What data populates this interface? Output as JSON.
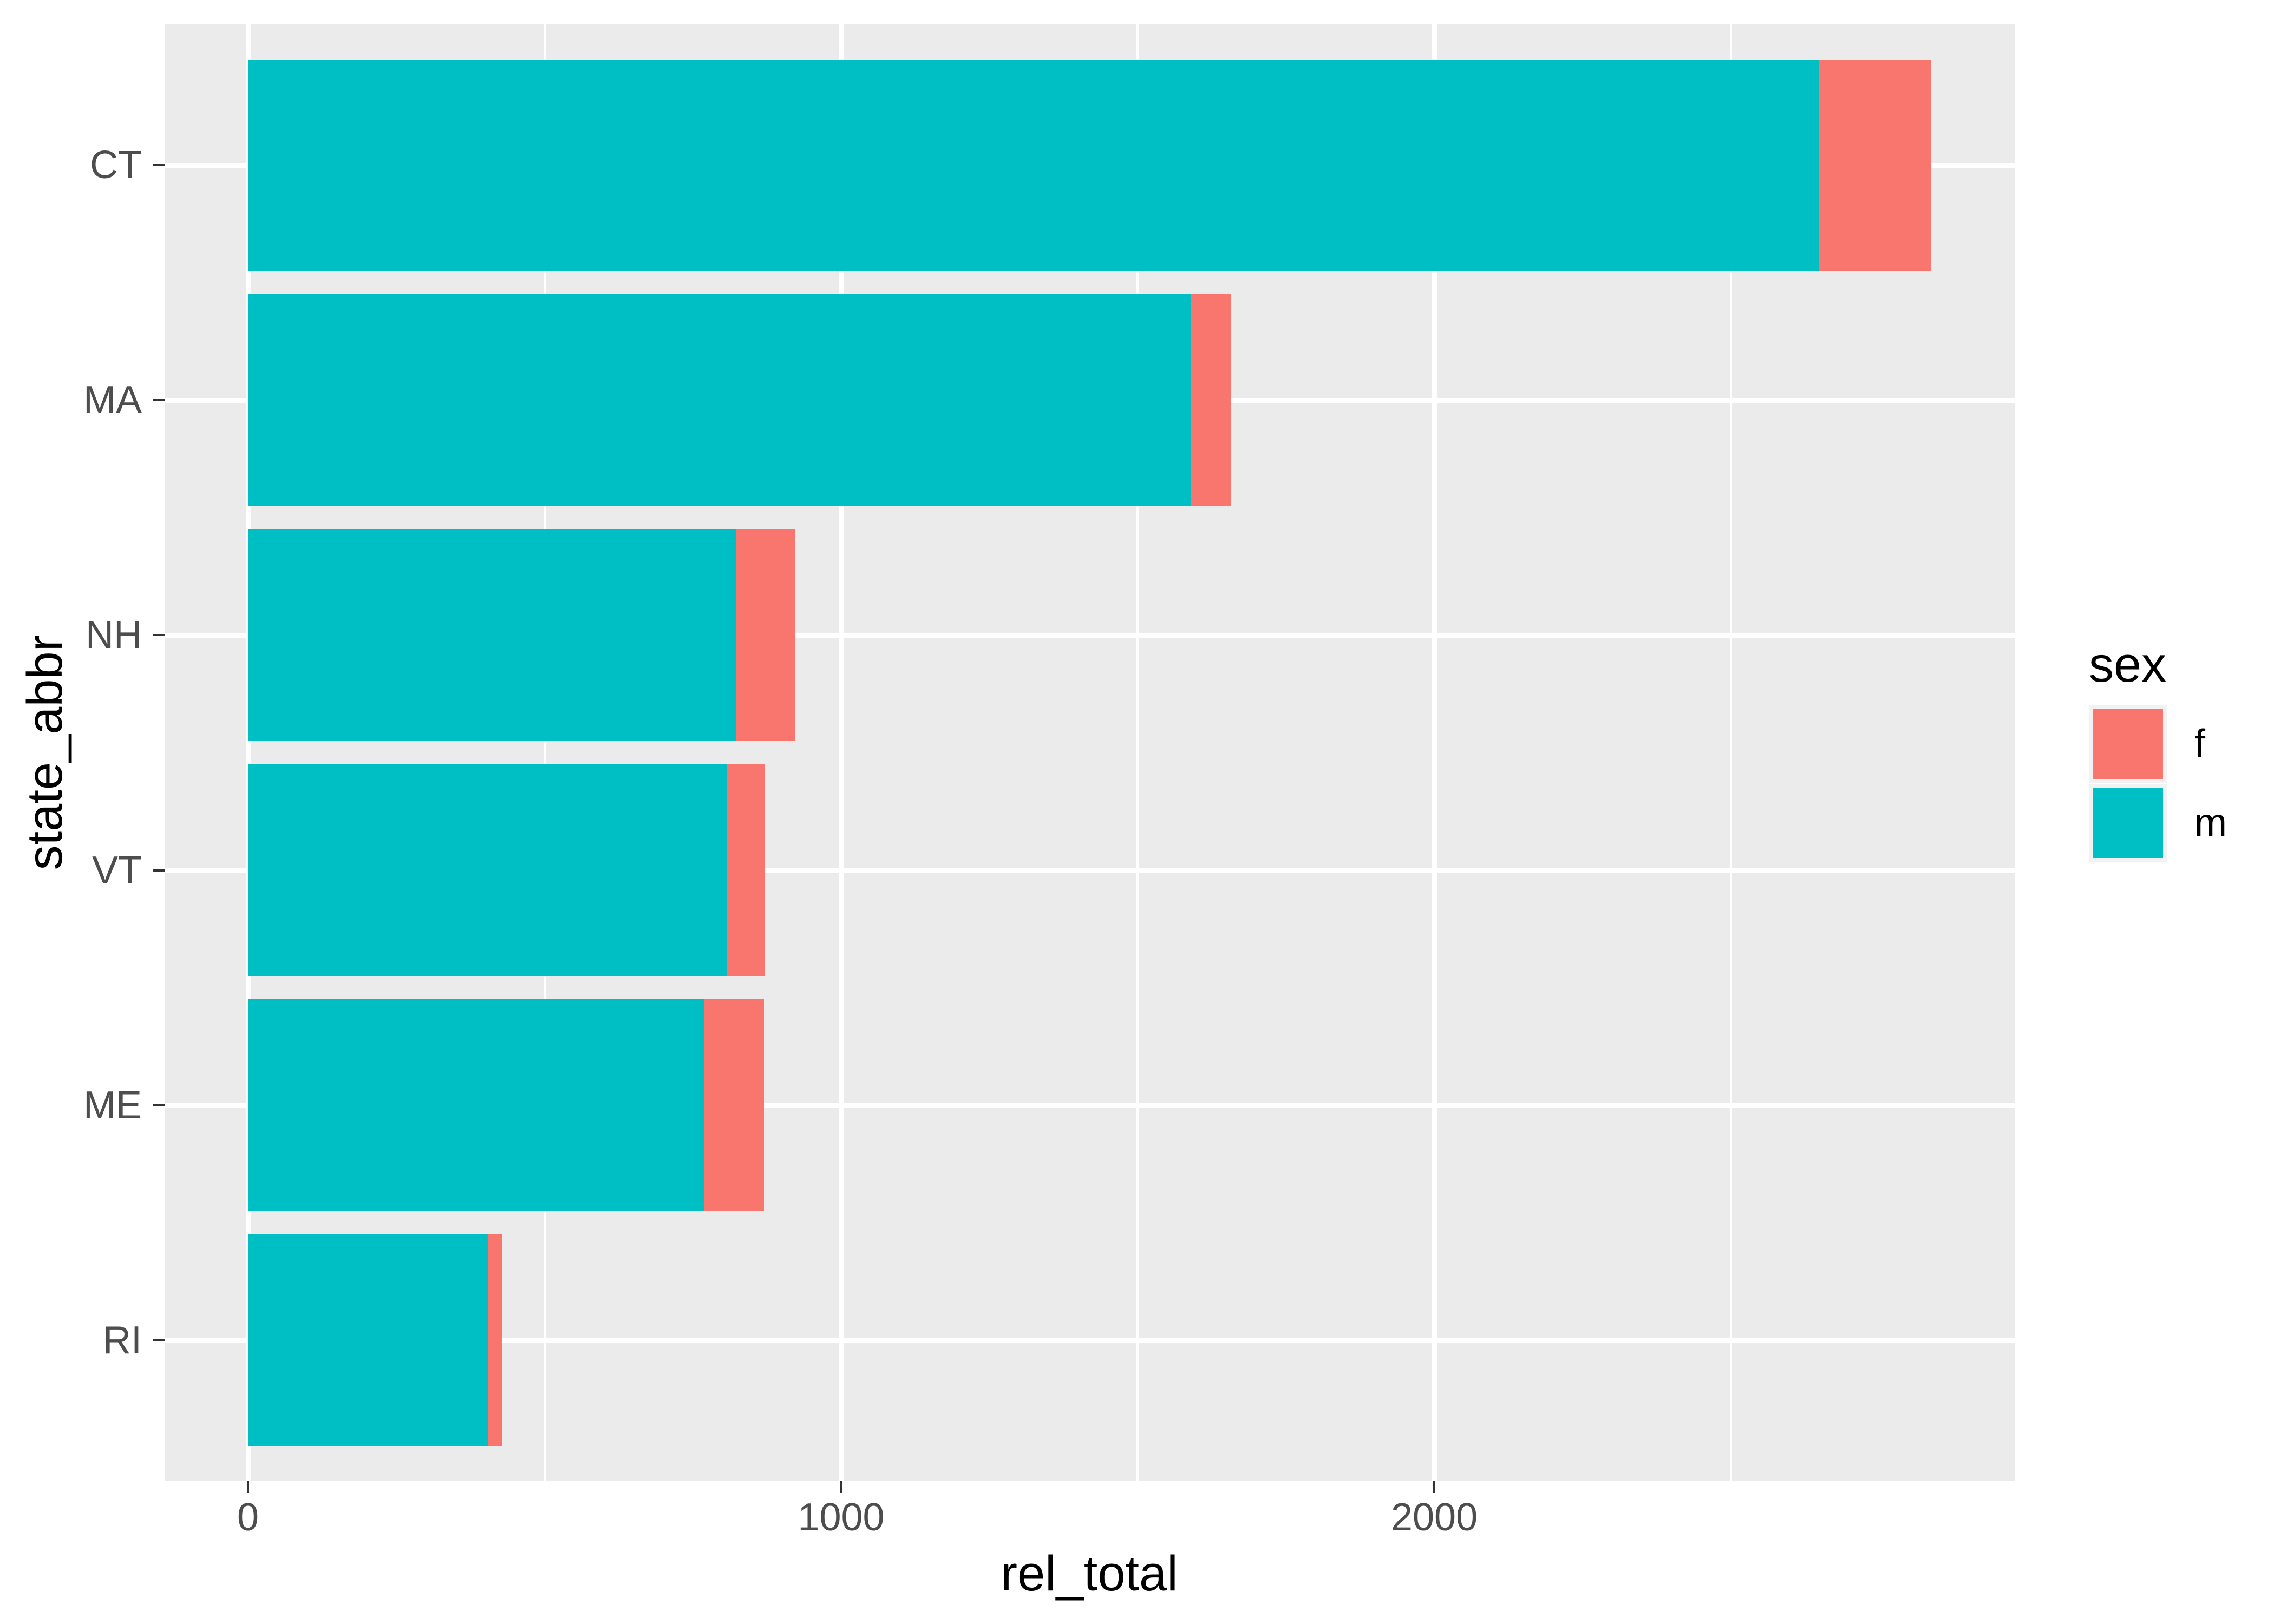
{
  "chart_data": {
    "type": "bar",
    "orientation": "horizontal",
    "stacked": true,
    "title": "",
    "xlabel": "rel_total",
    "ylabel": "state_abbr",
    "categories": [
      "CT",
      "MA",
      "NH",
      "VT",
      "ME",
      "RI"
    ],
    "series": [
      {
        "name": "m",
        "color": "#00BFC4",
        "values": [
          2648,
          1589,
          823,
          807,
          769,
          405
        ]
      },
      {
        "name": "f",
        "color": "#F8766D",
        "values": [
          189,
          69,
          99,
          65,
          101,
          24
        ]
      }
    ],
    "totals": [
      2837,
      1658,
      922,
      872,
      870,
      429
    ],
    "xlim": [
      0,
      2837
    ],
    "x_ticks": [
      0,
      1000,
      2000
    ],
    "x_tick_labels": [
      "0",
      "1000",
      "2000"
    ],
    "x_minor_ticks": [
      500,
      1500,
      2500
    ],
    "grid": true,
    "legend": {
      "position": "right",
      "title": "sex",
      "entries": [
        {
          "label": "f",
          "color": "#F8766D"
        },
        {
          "label": "m",
          "color": "#00BFC4"
        }
      ]
    },
    "colors": {
      "background": "#FFFFFF",
      "panel_bg": "#EBEBEB",
      "grid": "#FFFFFF",
      "axis_text": "#4D4D4D",
      "tick_mark": "#333333",
      "title_text": "#000000",
      "legend_key_bg": "#F2F2F2"
    }
  }
}
